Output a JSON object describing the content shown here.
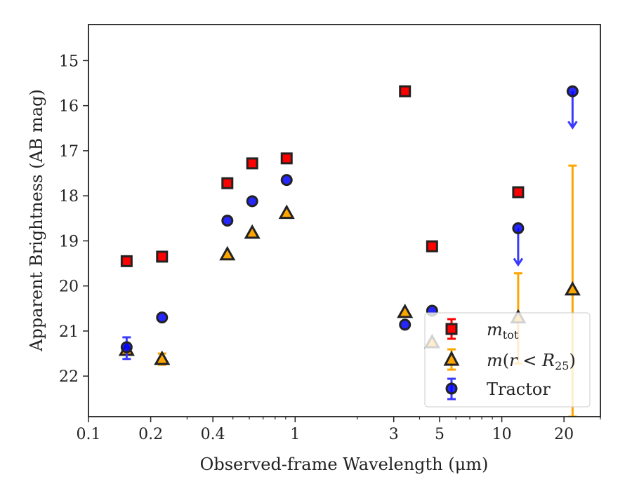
{
  "chart_data": {
    "type": "scatter",
    "xscale": "log",
    "xlim": [
      0.1,
      30
    ],
    "ylim": [
      22.9,
      14.2
    ],
    "y_inverted": true,
    "xlabel": "Observed-frame Wavelength (μm)",
    "ylabel": "Apparent Brightness (AB mag)",
    "xticks": [
      0.1,
      0.2,
      0.4,
      1,
      3,
      5,
      10,
      20
    ],
    "xtick_labels": [
      "0.1",
      "0.2",
      "0.4",
      "1",
      "3",
      "5",
      "10",
      "20"
    ],
    "yticks": [
      15,
      16,
      17,
      18,
      19,
      20,
      21,
      22
    ],
    "ytick_labels": [
      "15",
      "16",
      "17",
      "18",
      "19",
      "20",
      "21",
      "22"
    ],
    "legend_position": "lower-right",
    "series": [
      {
        "name": "m_tot",
        "marker": "square",
        "color": "#ff0000",
        "errcolor": "#ff0000",
        "points": [
          {
            "x": 0.153,
            "y": 19.45
          },
          {
            "x": 0.227,
            "y": 19.35
          },
          {
            "x": 0.47,
            "y": 17.72
          },
          {
            "x": 0.62,
            "y": 17.28
          },
          {
            "x": 0.91,
            "y": 17.17
          },
          {
            "x": 3.4,
            "y": 15.68
          },
          {
            "x": 4.6,
            "y": 19.12
          },
          {
            "x": 12.0,
            "y": 17.92
          }
        ]
      },
      {
        "name": "m(r<R25)",
        "marker": "triangle",
        "color": "#ffa500",
        "errcolor": "#ffa500",
        "points": [
          {
            "x": 0.153,
            "y": 21.42
          },
          {
            "x": 0.227,
            "y": 21.62,
            "ylo": 21.5,
            "yhi": 21.75
          },
          {
            "x": 0.47,
            "y": 19.3
          },
          {
            "x": 0.62,
            "y": 18.82
          },
          {
            "x": 0.91,
            "y": 18.38
          },
          {
            "x": 3.4,
            "y": 20.58
          },
          {
            "x": 4.6,
            "y": 21.25
          },
          {
            "x": 12.0,
            "y": 20.7,
            "ylo": 19.72,
            "yhi": 21.72
          },
          {
            "x": 22.0,
            "y": 20.08,
            "ylo": 17.33,
            "yhi": 22.9
          }
        ]
      },
      {
        "name": "Tractor",
        "marker": "circle",
        "color": "#0000ff",
        "errcolor": "#3a3aff",
        "points": [
          {
            "x": 0.153,
            "y": 21.36,
            "ylo": 21.14,
            "yhi": 21.62
          },
          {
            "x": 0.227,
            "y": 20.7
          },
          {
            "x": 0.47,
            "y": 18.55
          },
          {
            "x": 0.62,
            "y": 18.12
          },
          {
            "x": 0.91,
            "y": 17.65
          },
          {
            "x": 3.4,
            "y": 20.86
          },
          {
            "x": 4.6,
            "y": 20.55
          },
          {
            "x": 12.0,
            "y": 18.72,
            "upper_limit": true
          },
          {
            "x": 22.0,
            "y": 15.68,
            "upper_limit": true
          }
        ]
      }
    ]
  }
}
